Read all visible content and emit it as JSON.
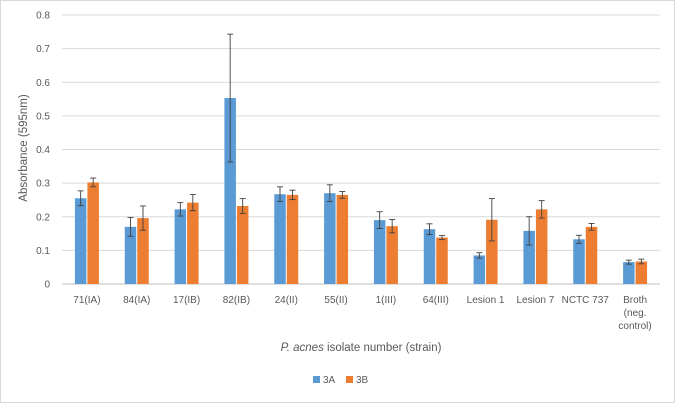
{
  "chart_data": {
    "type": "bar",
    "xlabel_italic": "P. acnes",
    "xlabel_rest": " isolate number (strain)",
    "ylabel": "Absorbance (595nm)",
    "ylim": [
      0,
      0.8
    ],
    "yticks": [
      "0",
      "0.1",
      "0.2",
      "0.3",
      "0.4",
      "0.5",
      "0.6",
      "0.7",
      "0.8"
    ],
    "grid": true,
    "legend_position": "bottom",
    "categories": [
      [
        "71(IA)"
      ],
      [
        "84(IA)"
      ],
      [
        "17(IB)"
      ],
      [
        "82(IB)"
      ],
      [
        "24(II)"
      ],
      [
        "55(II)"
      ],
      [
        "1(III)"
      ],
      [
        "64(III)"
      ],
      [
        "Lesion 1"
      ],
      [
        "Lesion 7"
      ],
      [
        "NCTC 737"
      ],
      [
        "Broth",
        "(neg.",
        "control)"
      ]
    ],
    "series": [
      {
        "name": "3A",
        "color": "#5b9bd5",
        "values": [
          0.255,
          0.17,
          0.222,
          0.553,
          0.267,
          0.27,
          0.19,
          0.163,
          0.085,
          0.158,
          0.133,
          0.065
        ],
        "errors": [
          0.022,
          0.028,
          0.02,
          0.19,
          0.022,
          0.025,
          0.025,
          0.016,
          0.008,
          0.042,
          0.012,
          0.006
        ]
      },
      {
        "name": "3B",
        "color": "#ed7d31",
        "values": [
          0.302,
          0.196,
          0.242,
          0.232,
          0.265,
          0.265,
          0.172,
          0.138,
          0.191,
          0.222,
          0.17,
          0.067
        ],
        "errors": [
          0.013,
          0.036,
          0.024,
          0.022,
          0.014,
          0.01,
          0.02,
          0.006,
          0.063,
          0.026,
          0.01,
          0.007
        ]
      }
    ]
  }
}
